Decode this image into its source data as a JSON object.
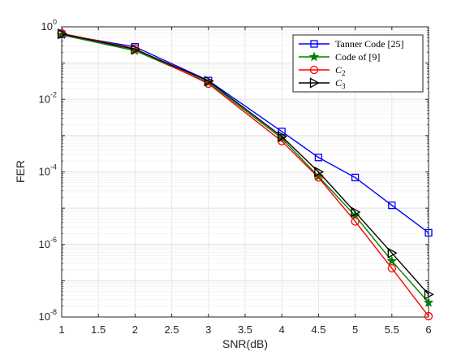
{
  "chart_data": {
    "type": "line",
    "xlabel": "SNR(dB)",
    "ylabel": "FER",
    "yscale": "log",
    "xlim": [
      1,
      6
    ],
    "ylim": [
      1e-08,
      1
    ],
    "grid": true,
    "legend_position": "top-right",
    "x_ticks": [
      "1",
      "1.5",
      "2",
      "2.5",
      "3",
      "3.5",
      "4",
      "4.5",
      "5",
      "5.5",
      "6"
    ],
    "y_ticks": [
      {
        "base": "10",
        "exp": "-8",
        "value": 1e-08
      },
      {
        "base": "10",
        "exp": "-6",
        "value": 1e-06
      },
      {
        "base": "10",
        "exp": "-4",
        "value": 0.0001
      },
      {
        "base": "10",
        "exp": "-2",
        "value": 0.01
      },
      {
        "base": "10",
        "exp": "0",
        "value": 1
      }
    ],
    "series": [
      {
        "name": "Tanner Code [25]",
        "color": "#0000ff",
        "marker": "square",
        "x": [
          1,
          2,
          3,
          4,
          4.5,
          5,
          5.5,
          6
        ],
        "y": [
          0.62,
          0.28,
          0.033,
          0.0013,
          0.00025,
          7e-05,
          1.2e-05,
          2.1e-06
        ]
      },
      {
        "name": "Code of [9]",
        "color": "#008000",
        "marker": "star",
        "x": [
          1,
          2,
          3,
          4,
          4.5,
          5,
          5.5,
          6
        ],
        "y": [
          0.6,
          0.22,
          0.029,
          0.00085,
          7.5e-05,
          6.2e-06,
          3.5e-07,
          2.5e-08
        ]
      },
      {
        "name": "C2",
        "label_main": "C",
        "label_sub": "2",
        "color": "#ff0000",
        "marker": "circle",
        "x": [
          1,
          2,
          3,
          4,
          4.5,
          5,
          5.5,
          6
        ],
        "y": [
          0.66,
          0.25,
          0.027,
          0.0007,
          7e-05,
          4.3e-06,
          2.2e-07,
          1.05e-08
        ]
      },
      {
        "name": "C3",
        "label_main": "C",
        "label_sub": "3",
        "color": "#000000",
        "marker": "triangle-right",
        "x": [
          1,
          2,
          3,
          4,
          4.5,
          5,
          5.5,
          6
        ],
        "y": [
          0.64,
          0.24,
          0.032,
          0.00095,
          0.0001,
          7.8e-06,
          5.8e-07,
          4.2e-08
        ]
      }
    ]
  }
}
